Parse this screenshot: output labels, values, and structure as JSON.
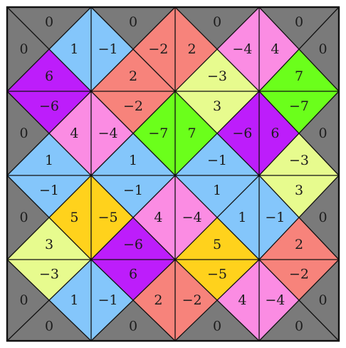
{
  "puzzle": {
    "grid_size": 4,
    "palette": {
      "g": "#7a7a7a",
      "b": "#84c6fb",
      "r": "#f7837b",
      "p": "#fb8ce3",
      "y": "#e7fb8e",
      "v": "#bd1dfb",
      "l": "#6bff1b",
      "o": "#ffd21c"
    },
    "tiles": [
      [
        {
          "top": {
            "value": "0",
            "color": "g"
          },
          "right": {
            "value": "1",
            "color": "b"
          },
          "bottom": {
            "value": "6",
            "color": "v"
          },
          "left": {
            "value": "0",
            "color": "g"
          }
        },
        {
          "top": {
            "value": "0",
            "color": "g"
          },
          "right": {
            "value": "−2",
            "color": "r"
          },
          "bottom": {
            "value": "2",
            "color": "r"
          },
          "left": {
            "value": "−1",
            "color": "b"
          }
        },
        {
          "top": {
            "value": "0",
            "color": "g"
          },
          "right": {
            "value": "−4",
            "color": "p"
          },
          "bottom": {
            "value": "−3",
            "color": "y"
          },
          "left": {
            "value": "2",
            "color": "r"
          }
        },
        {
          "top": {
            "value": "0",
            "color": "g"
          },
          "right": {
            "value": "0",
            "color": "g"
          },
          "bottom": {
            "value": "7",
            "color": "l"
          },
          "left": {
            "value": "4",
            "color": "p"
          }
        }
      ],
      [
        {
          "top": {
            "value": "−6",
            "color": "v"
          },
          "right": {
            "value": "4",
            "color": "p"
          },
          "bottom": {
            "value": "1",
            "color": "b"
          },
          "left": {
            "value": "0",
            "color": "g"
          }
        },
        {
          "top": {
            "value": "−2",
            "color": "r"
          },
          "right": {
            "value": "−7",
            "color": "l"
          },
          "bottom": {
            "value": "1",
            "color": "b"
          },
          "left": {
            "value": "−4",
            "color": "p"
          }
        },
        {
          "top": {
            "value": "3",
            "color": "y"
          },
          "right": {
            "value": "−6",
            "color": "v"
          },
          "bottom": {
            "value": "−1",
            "color": "b"
          },
          "left": {
            "value": "7",
            "color": "l"
          }
        },
        {
          "top": {
            "value": "−7",
            "color": "l"
          },
          "right": {
            "value": "0",
            "color": "g"
          },
          "bottom": {
            "value": "−3",
            "color": "y"
          },
          "left": {
            "value": "6",
            "color": "v"
          }
        }
      ],
      [
        {
          "top": {
            "value": "−1",
            "color": "b"
          },
          "right": {
            "value": "5",
            "color": "o"
          },
          "bottom": {
            "value": "3",
            "color": "y"
          },
          "left": {
            "value": "0",
            "color": "g"
          }
        },
        {
          "top": {
            "value": "−1",
            "color": "b"
          },
          "right": {
            "value": "4",
            "color": "p"
          },
          "bottom": {
            "value": "−6",
            "color": "v"
          },
          "left": {
            "value": "−5",
            "color": "o"
          }
        },
        {
          "top": {
            "value": "1",
            "color": "b"
          },
          "right": {
            "value": "1",
            "color": "b"
          },
          "bottom": {
            "value": "5",
            "color": "o"
          },
          "left": {
            "value": "−4",
            "color": "p"
          }
        },
        {
          "top": {
            "value": "3",
            "color": "y"
          },
          "right": {
            "value": "0",
            "color": "g"
          },
          "bottom": {
            "value": "2",
            "color": "r"
          },
          "left": {
            "value": "−1",
            "color": "b"
          }
        }
      ],
      [
        {
          "top": {
            "value": "−3",
            "color": "y"
          },
          "right": {
            "value": "1",
            "color": "b"
          },
          "bottom": {
            "value": "0",
            "color": "g"
          },
          "left": {
            "value": "0",
            "color": "g"
          }
        },
        {
          "top": {
            "value": "6",
            "color": "v"
          },
          "right": {
            "value": "2",
            "color": "r"
          },
          "bottom": {
            "value": "0",
            "color": "g"
          },
          "left": {
            "value": "−1",
            "color": "b"
          }
        },
        {
          "top": {
            "value": "−5",
            "color": "o"
          },
          "right": {
            "value": "4",
            "color": "p"
          },
          "bottom": {
            "value": "0",
            "color": "g"
          },
          "left": {
            "value": "−2",
            "color": "r"
          }
        },
        {
          "top": {
            "value": "−2",
            "color": "r"
          },
          "right": {
            "value": "0",
            "color": "g"
          },
          "bottom": {
            "value": "0",
            "color": "g"
          },
          "left": {
            "value": "−4",
            "color": "p"
          }
        }
      ]
    ]
  }
}
